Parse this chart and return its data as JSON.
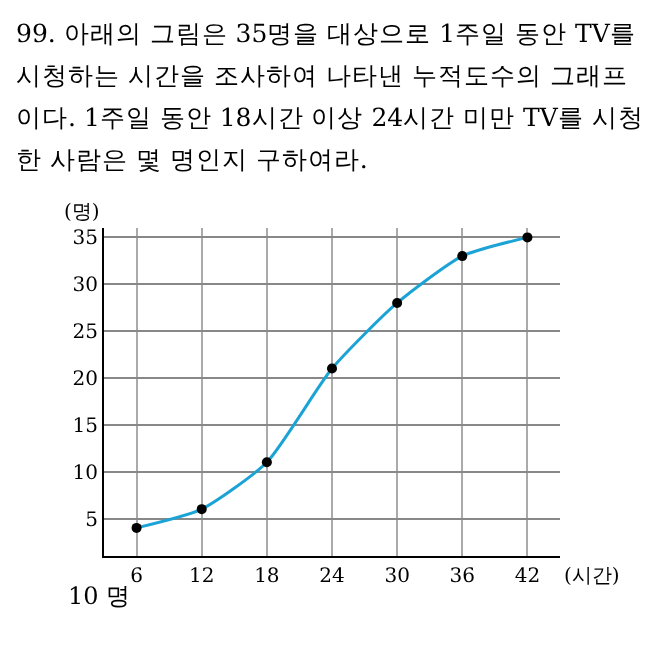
{
  "chart_data": {
    "type": "line",
    "title": "99. 아래의 그림은 35명을 대상으로 1주일 동안 TV를 시청하는 시간을 조사하여 나타낸 누적도수의 그래프이다. 1주일 동안 18시간 이상 24시간 미만 TV를 시청한 사람은 몇 명인지 구하여라.",
    "xlabel": "(시간)",
    "ylabel": "(명)",
    "x": [
      6,
      12,
      18,
      24,
      30,
      36,
      42
    ],
    "series": [
      {
        "color": "#1ba3d6",
        "values": [
          4,
          6,
          11,
          21,
          28,
          33,
          35
        ]
      }
    ],
    "xlim": [
      3,
      45
    ],
    "xticks": [
      6,
      12,
      18,
      24,
      30,
      36,
      42
    ],
    "ylim": [
      1,
      36
    ],
    "yticks": [
      5,
      10,
      15,
      20,
      25,
      30,
      35
    ],
    "grid": true,
    "marker": "circle",
    "line_style": "solid",
    "annotations": [
      "10 명"
    ]
  }
}
